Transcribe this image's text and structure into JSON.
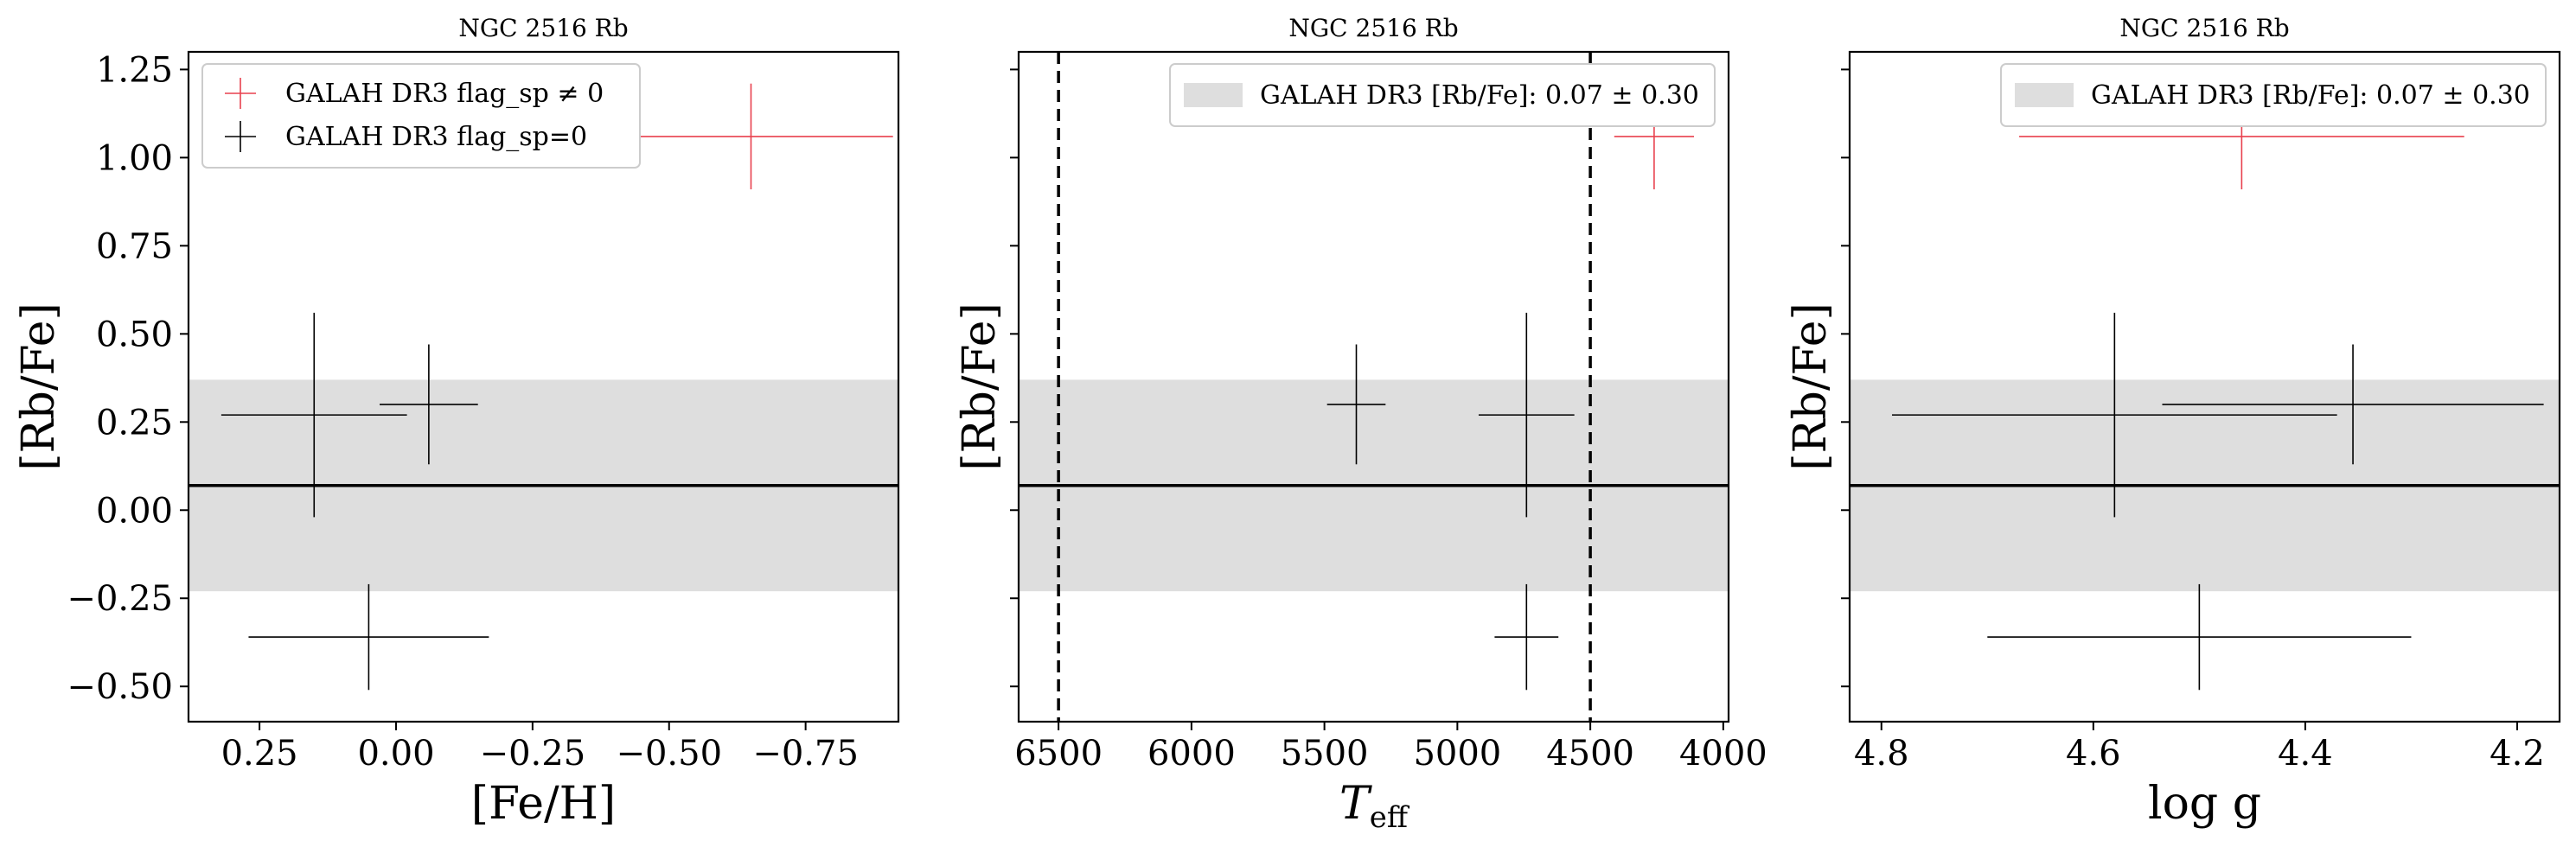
{
  "colors": {
    "flagged": "#e8414e",
    "unflagged": "#000000",
    "band": "#dedede",
    "mean_line": "#000000",
    "legend_border": "#cccccc"
  },
  "chart_data": [
    {
      "type": "scatter",
      "title": "NGC 2516 Rb",
      "xlabel": "[Fe/H]",
      "ylabel": "[Rb/Fe]",
      "xlim": [
        0.38,
        -0.92
      ],
      "ylim": [
        -0.6,
        1.3
      ],
      "x_inverted": true,
      "xticks": [
        0.25,
        0.0,
        -0.25,
        -0.5,
        -0.75
      ],
      "xtick_labels": [
        "0.25",
        "0.00",
        "−0.25",
        "−0.50",
        "−0.75"
      ],
      "yticks": [
        -0.5,
        -0.25,
        0.0,
        0.25,
        0.5,
        0.75,
        1.0,
        1.25
      ],
      "ytick_labels": [
        "−0.50",
        "−0.25",
        "0.00",
        "0.25",
        "0.50",
        "0.75",
        "1.00",
        "1.25"
      ],
      "show_ytick_labels": true,
      "mean": 0.07,
      "band": [
        -0.23,
        0.37
      ],
      "vlines": [],
      "legend": {
        "position": "upper-left",
        "entries": [
          {
            "label": "GALAH DR3 flag_sp ≠ 0",
            "marker": "plus",
            "color": "flagged"
          },
          {
            "label": "GALAH DR3 flag_sp=0",
            "marker": "plus",
            "color": "unflagged"
          }
        ]
      },
      "series": [
        {
          "flagged": false,
          "x": 0.15,
          "xerr": 0.17,
          "y": 0.27,
          "yerr": 0.29
        },
        {
          "flagged": false,
          "x": -0.06,
          "xerr": 0.09,
          "y": 0.3,
          "yerr": 0.17
        },
        {
          "flagged": false,
          "x": 0.05,
          "xerr": 0.22,
          "y": -0.36,
          "yerr": 0.15
        },
        {
          "flagged": true,
          "x": -0.65,
          "xerr": 0.26,
          "y": 1.06,
          "yerr": 0.15
        }
      ]
    },
    {
      "type": "scatter",
      "title": "NGC 2516 Rb",
      "xlabel": "Teff",
      "ylabel": "[Rb/Fe]",
      "xlim": [
        6650,
        3980
      ],
      "ylim": [
        -0.6,
        1.3
      ],
      "x_inverted": true,
      "xticks": [
        6500,
        6000,
        5500,
        5000,
        4500,
        4000
      ],
      "xtick_labels": [
        "6500",
        "6000",
        "5500",
        "5000",
        "4500",
        "4000"
      ],
      "yticks": [
        -0.5,
        -0.25,
        0.0,
        0.25,
        0.5,
        0.75,
        1.0,
        1.25
      ],
      "ytick_labels": [],
      "show_ytick_labels": false,
      "mean": 0.07,
      "band": [
        -0.23,
        0.37
      ],
      "vlines": [
        6500,
        4500
      ],
      "legend": {
        "position": "upper-right",
        "entries": [
          {
            "label": "GALAH DR3 [Rb/Fe]: 0.07 ± 0.30",
            "marker": "band",
            "color": "band"
          }
        ]
      },
      "series": [
        {
          "flagged": false,
          "x": 5380,
          "xerr": 110,
          "y": 0.3,
          "yerr": 0.17
        },
        {
          "flagged": false,
          "x": 4740,
          "xerr": 180,
          "y": 0.27,
          "yerr": 0.29
        },
        {
          "flagged": false,
          "x": 4740,
          "xerr": 120,
          "y": -0.36,
          "yerr": 0.15
        },
        {
          "flagged": true,
          "x": 4260,
          "xerr": 150,
          "y": 1.06,
          "yerr": 0.15
        }
      ]
    },
    {
      "type": "scatter",
      "title": "NGC 2516 Rb",
      "xlabel": "log g",
      "ylabel": "[Rb/Fe]",
      "xlim": [
        4.83,
        4.16
      ],
      "ylim": [
        -0.6,
        1.3
      ],
      "x_inverted": true,
      "xticks": [
        4.8,
        4.6,
        4.4,
        4.2
      ],
      "xtick_labels": [
        "4.8",
        "4.6",
        "4.4",
        "4.2"
      ],
      "yticks": [
        -0.5,
        -0.25,
        0.0,
        0.25,
        0.5,
        0.75,
        1.0,
        1.25
      ],
      "ytick_labels": [],
      "show_ytick_labels": false,
      "mean": 0.07,
      "band": [
        -0.23,
        0.37
      ],
      "vlines": [],
      "legend": {
        "position": "upper-right",
        "entries": [
          {
            "label": "GALAH DR3 [Rb/Fe]: 0.07 ± 0.30",
            "marker": "band",
            "color": "band"
          }
        ]
      },
      "series": [
        {
          "flagged": false,
          "x": 4.58,
          "xerr": 0.21,
          "y": 0.27,
          "yerr": 0.29
        },
        {
          "flagged": false,
          "x": 4.355,
          "xerr": 0.18,
          "y": 0.3,
          "yerr": 0.17
        },
        {
          "flagged": false,
          "x": 4.5,
          "xerr": 0.2,
          "y": -0.36,
          "yerr": 0.15
        },
        {
          "flagged": true,
          "x": 4.46,
          "xerr": 0.21,
          "y": 1.06,
          "yerr": 0.15
        }
      ]
    }
  ]
}
